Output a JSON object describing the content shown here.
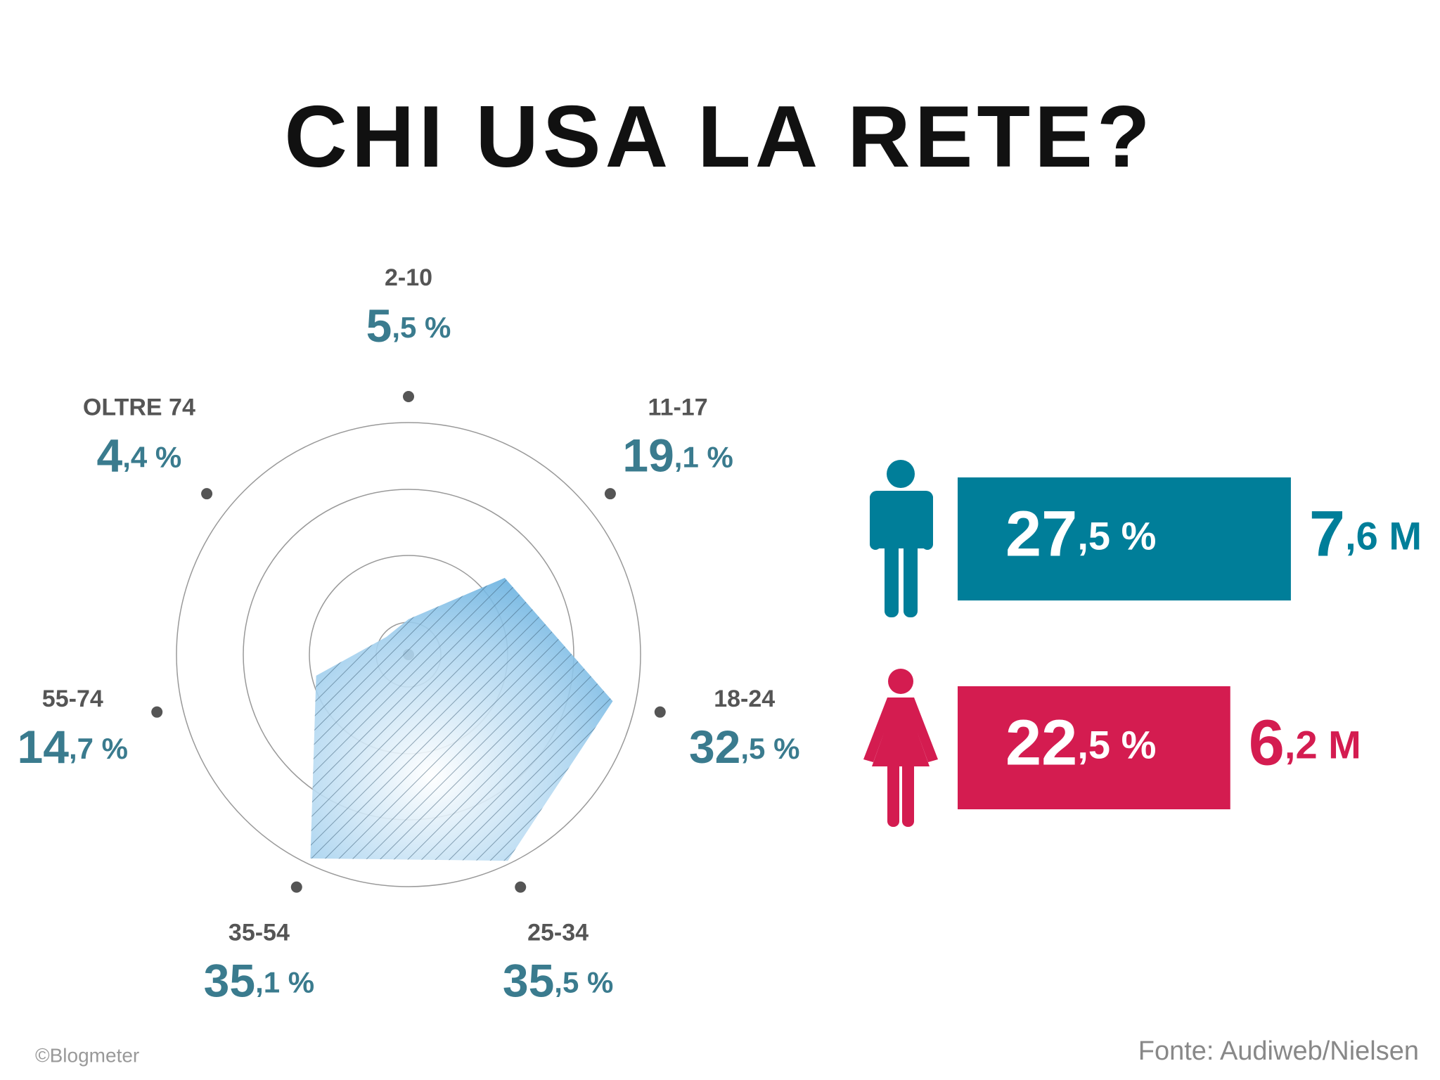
{
  "title": "CHI USA LA RETE?",
  "chart_data": [
    {
      "type": "radar",
      "categories": [
        "2-10",
        "11-17",
        "18-24",
        "25-34",
        "35-54",
        "55-74",
        "OLTRE 74"
      ],
      "values": [
        5.5,
        19.1,
        32.5,
        35.5,
        35.1,
        14.7,
        4.4
      ],
      "value_labels": [
        "5,5 %",
        "19,1 %",
        "32,5 %",
        "35,5 %",
        "35,1 %",
        "14,7 %",
        "4,4 %"
      ],
      "rlim": [
        0,
        36
      ],
      "color": "#6fb6e0"
    },
    {
      "type": "bar",
      "orientation": "horizontal",
      "values": [
        27.5,
        22.5
      ],
      "value_labels": [
        "27,5 %",
        "22,5 %"
      ],
      "totals": [
        7.6,
        6.2
      ],
      "total_labels": [
        "7,6 M",
        "6,2 M"
      ],
      "colors": [
        "#007e99",
        "#d41c50"
      ],
      "xlim": [
        0,
        30
      ]
    }
  ],
  "footer": {
    "credit": "©Blogmeter",
    "source": "Fonte: Audiweb/Nielsen"
  }
}
